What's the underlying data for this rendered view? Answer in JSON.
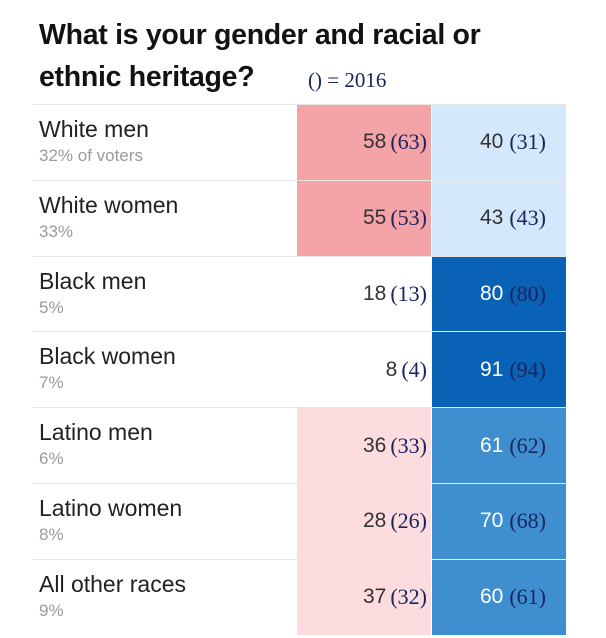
{
  "title": "What is your gender and racial or ethnic heritage?",
  "legend": "() = 2016",
  "colors": {
    "rep_strong": "#f4a3a6",
    "rep_light": "#fcdcdf",
    "dem_light": "#d4e8fb",
    "dem_mid": "#3f8fd0",
    "dem_dark": "#0a62b6"
  },
  "chart_data": {
    "type": "table",
    "title": "What is your gender and racial or ethnic heritage?",
    "note": "() = 2016",
    "rows": [
      {
        "group": "White men",
        "share": "32% of voters",
        "rep": 58,
        "rep_2016": "(63)",
        "dem": 40,
        "dem_2016": "(31)",
        "rep_shade": "rep_strong",
        "dem_shade": "dem_light"
      },
      {
        "group": "White women",
        "share": "33%",
        "rep": 55,
        "rep_2016": "(53)",
        "dem": 43,
        "dem_2016": "(43)",
        "rep_shade": "rep_strong",
        "dem_shade": "dem_light"
      },
      {
        "group": "Black men",
        "share": "5%",
        "rep": 18,
        "rep_2016": "(13)",
        "dem": 80,
        "dem_2016": "(80)",
        "rep_shade": "none",
        "dem_shade": "dem_dark"
      },
      {
        "group": "Black women",
        "share": "7%",
        "rep": 8,
        "rep_2016": "(4)",
        "dem": 91,
        "dem_2016": "(94)",
        "rep_shade": "none",
        "dem_shade": "dem_dark"
      },
      {
        "group": "Latino men",
        "share": "6%",
        "rep": 36,
        "rep_2016": "(33)",
        "dem": 61,
        "dem_2016": "(62)",
        "rep_shade": "rep_light",
        "dem_shade": "dem_mid"
      },
      {
        "group": "Latino women",
        "share": "8%",
        "rep": 28,
        "rep_2016": "(26)",
        "dem": 70,
        "dem_2016": "(68)",
        "rep_shade": "rep_light",
        "dem_shade": "dem_mid"
      },
      {
        "group": "All other races",
        "share": "9%",
        "rep": 37,
        "rep_2016": "(32)",
        "dem": 60,
        "dem_2016": "(61)",
        "rep_shade": "rep_light",
        "dem_shade": "dem_mid"
      }
    ]
  }
}
